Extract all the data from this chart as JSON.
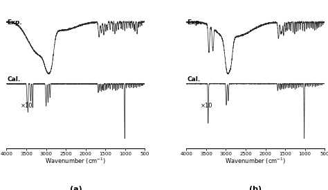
{
  "xlim": [
    4000,
    500
  ],
  "xlabel": "Wavenumber (cm$^{-1}$)",
  "panel_labels": [
    "(a)",
    "(b)"
  ],
  "exp_label": "Exp.",
  "cal_label": "Cal.",
  "x10_label": "×10",
  "background_color": "#ffffff",
  "line_color": "#2a2a2a",
  "xticks": [
    4000,
    3500,
    3000,
    2500,
    2000,
    1500,
    1000,
    500
  ],
  "figsize": [
    4.74,
    2.74
  ],
  "dpi": 100
}
